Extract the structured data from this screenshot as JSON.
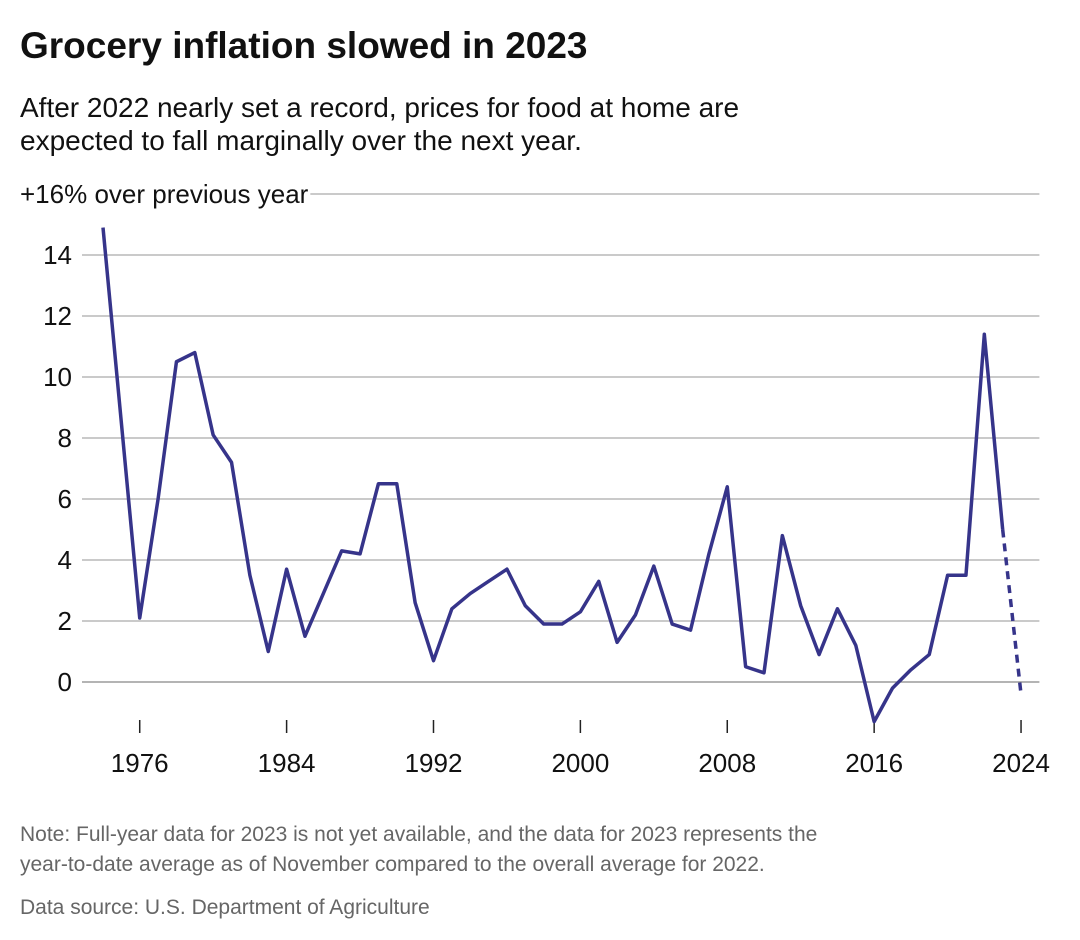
{
  "chart_data": {
    "type": "line",
    "title": "Grocery inflation slowed in 2023",
    "subtitle": [
      "After 2022 nearly set a record, prices for food at home are",
      "expected to fall marginally over the next year."
    ],
    "note": [
      "Note: Full-year data for 2023 is not yet available, and the data for 2023 represents the",
      "year-to-date average as of November compared to the overall average for 2022."
    ],
    "source": "Data source: U.S. Department of Agriculture",
    "series": [
      {
        "color": "#36348a",
        "style": "solid",
        "x": [
          1974,
          1976,
          1977,
          1978,
          1979,
          1980,
          1981,
          1982,
          1983,
          1984,
          1985,
          1986,
          1987,
          1988,
          1989,
          1990,
          1991,
          1992,
          1993,
          1994,
          1995,
          1996,
          1997,
          1998,
          1999,
          2000,
          2001,
          2002,
          2003,
          2004,
          2005,
          2006,
          2007,
          2008,
          2009,
          2010,
          2011,
          2012,
          2013,
          2014,
          2015,
          2016,
          2017,
          2018,
          2019,
          2020,
          2021,
          2022,
          2023
        ],
        "values": [
          14.9,
          2.1,
          6.0,
          10.5,
          10.8,
          8.1,
          7.2,
          3.5,
          1.0,
          3.7,
          1.5,
          2.9,
          4.3,
          4.2,
          6.5,
          6.5,
          2.6,
          0.7,
          2.4,
          2.9,
          3.3,
          3.7,
          2.5,
          1.9,
          1.9,
          2.3,
          3.3,
          1.3,
          2.2,
          3.8,
          1.9,
          1.7,
          4.2,
          6.4,
          0.5,
          0.3,
          4.8,
          2.5,
          0.9,
          2.4,
          1.2,
          -1.3,
          -0.2,
          0.4,
          0.9,
          3.5,
          3.5,
          11.4,
          5.0
        ]
      },
      {
        "color": "#36348a",
        "style": "dashed",
        "x": [
          2023,
          2024
        ],
        "values": [
          5.0,
          -0.4
        ]
      }
    ],
    "xlim": [
      1974,
      2025
    ],
    "xticks": [
      1976,
      1984,
      1992,
      2000,
      2008,
      2016,
      2024
    ],
    "ylim": [
      -1.5,
      16
    ],
    "yticks": [
      0,
      2,
      4,
      6,
      8,
      10,
      12,
      14,
      {
        "value": 16,
        "label": "+16% over previous year"
      }
    ],
    "grid": true
  }
}
